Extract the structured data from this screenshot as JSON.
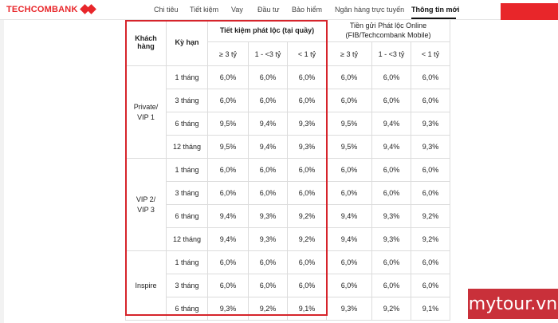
{
  "brand": {
    "name": "TECHCOMBANK",
    "color": "#e8262a"
  },
  "nav": {
    "items": [
      {
        "label": "Chi tiêu"
      },
      {
        "label": "Tiết kiệm"
      },
      {
        "label": "Vay"
      },
      {
        "label": "Đầu tư"
      },
      {
        "label": "Bảo hiểm"
      },
      {
        "label": "Ngân hàng trực tuyến"
      },
      {
        "label": "Thông tin mới",
        "active": true
      }
    ]
  },
  "table": {
    "headers": {
      "customer": "Khách hàng",
      "term": "Kỳ hạn",
      "counter": "Tiết kiệm phát lộc (tại quầy)",
      "online": "Tiền gửi Phát lộc Online (FIB/Techcombank Mobile)",
      "tiers": [
        "≥ 3 tỷ",
        "1 - <3 tỷ",
        "< 1 tỷ"
      ]
    },
    "groups": [
      {
        "label": "Private/ VIP 1",
        "rows": [
          {
            "term": "1 tháng",
            "counter": [
              "6,0%",
              "6,0%",
              "6,0%"
            ],
            "online": [
              "6,0%",
              "6,0%",
              "6,0%"
            ]
          },
          {
            "term": "3 tháng",
            "counter": [
              "6,0%",
              "6,0%",
              "6,0%"
            ],
            "online": [
              "6,0%",
              "6,0%",
              "6,0%"
            ]
          },
          {
            "term": "6 tháng",
            "counter": [
              "9,5%",
              "9,4%",
              "9,3%"
            ],
            "online": [
              "9,5%",
              "9,4%",
              "9,3%"
            ]
          },
          {
            "term": "12 tháng",
            "counter": [
              "9,5%",
              "9,4%",
              "9,3%"
            ],
            "online": [
              "9,5%",
              "9,4%",
              "9,3%"
            ]
          }
        ]
      },
      {
        "label": "VIP 2/ VIP 3",
        "rows": [
          {
            "term": "1 tháng",
            "counter": [
              "6,0%",
              "6,0%",
              "6,0%"
            ],
            "online": [
              "6,0%",
              "6,0%",
              "6,0%"
            ]
          },
          {
            "term": "3 tháng",
            "counter": [
              "6,0%",
              "6,0%",
              "6,0%"
            ],
            "online": [
              "6,0%",
              "6,0%",
              "6,0%"
            ]
          },
          {
            "term": "6 tháng",
            "counter": [
              "9,4%",
              "9,3%",
              "9,2%"
            ],
            "online": [
              "9,4%",
              "9,3%",
              "9,2%"
            ]
          },
          {
            "term": "12 tháng",
            "counter": [
              "9,4%",
              "9,3%",
              "9,2%"
            ],
            "online": [
              "9,4%",
              "9,3%",
              "9,2%"
            ]
          }
        ]
      },
      {
        "label": "Inspire",
        "rows": [
          {
            "term": "1 tháng",
            "counter": [
              "6,0%",
              "6,0%",
              "6,0%"
            ],
            "online": [
              "6,0%",
              "6,0%",
              "6,0%"
            ]
          },
          {
            "term": "3 tháng",
            "counter": [
              "6,0%",
              "6,0%",
              "6,0%"
            ],
            "online": [
              "6,0%",
              "6,0%",
              "6,0%"
            ]
          },
          {
            "term": "6 tháng",
            "counter": [
              "9,3%",
              "9,2%",
              "9,1%"
            ],
            "online": [
              "9,3%",
              "9,2%",
              "9,1%"
            ]
          }
        ]
      }
    ]
  },
  "watermark": {
    "text": "mytour.vn"
  }
}
